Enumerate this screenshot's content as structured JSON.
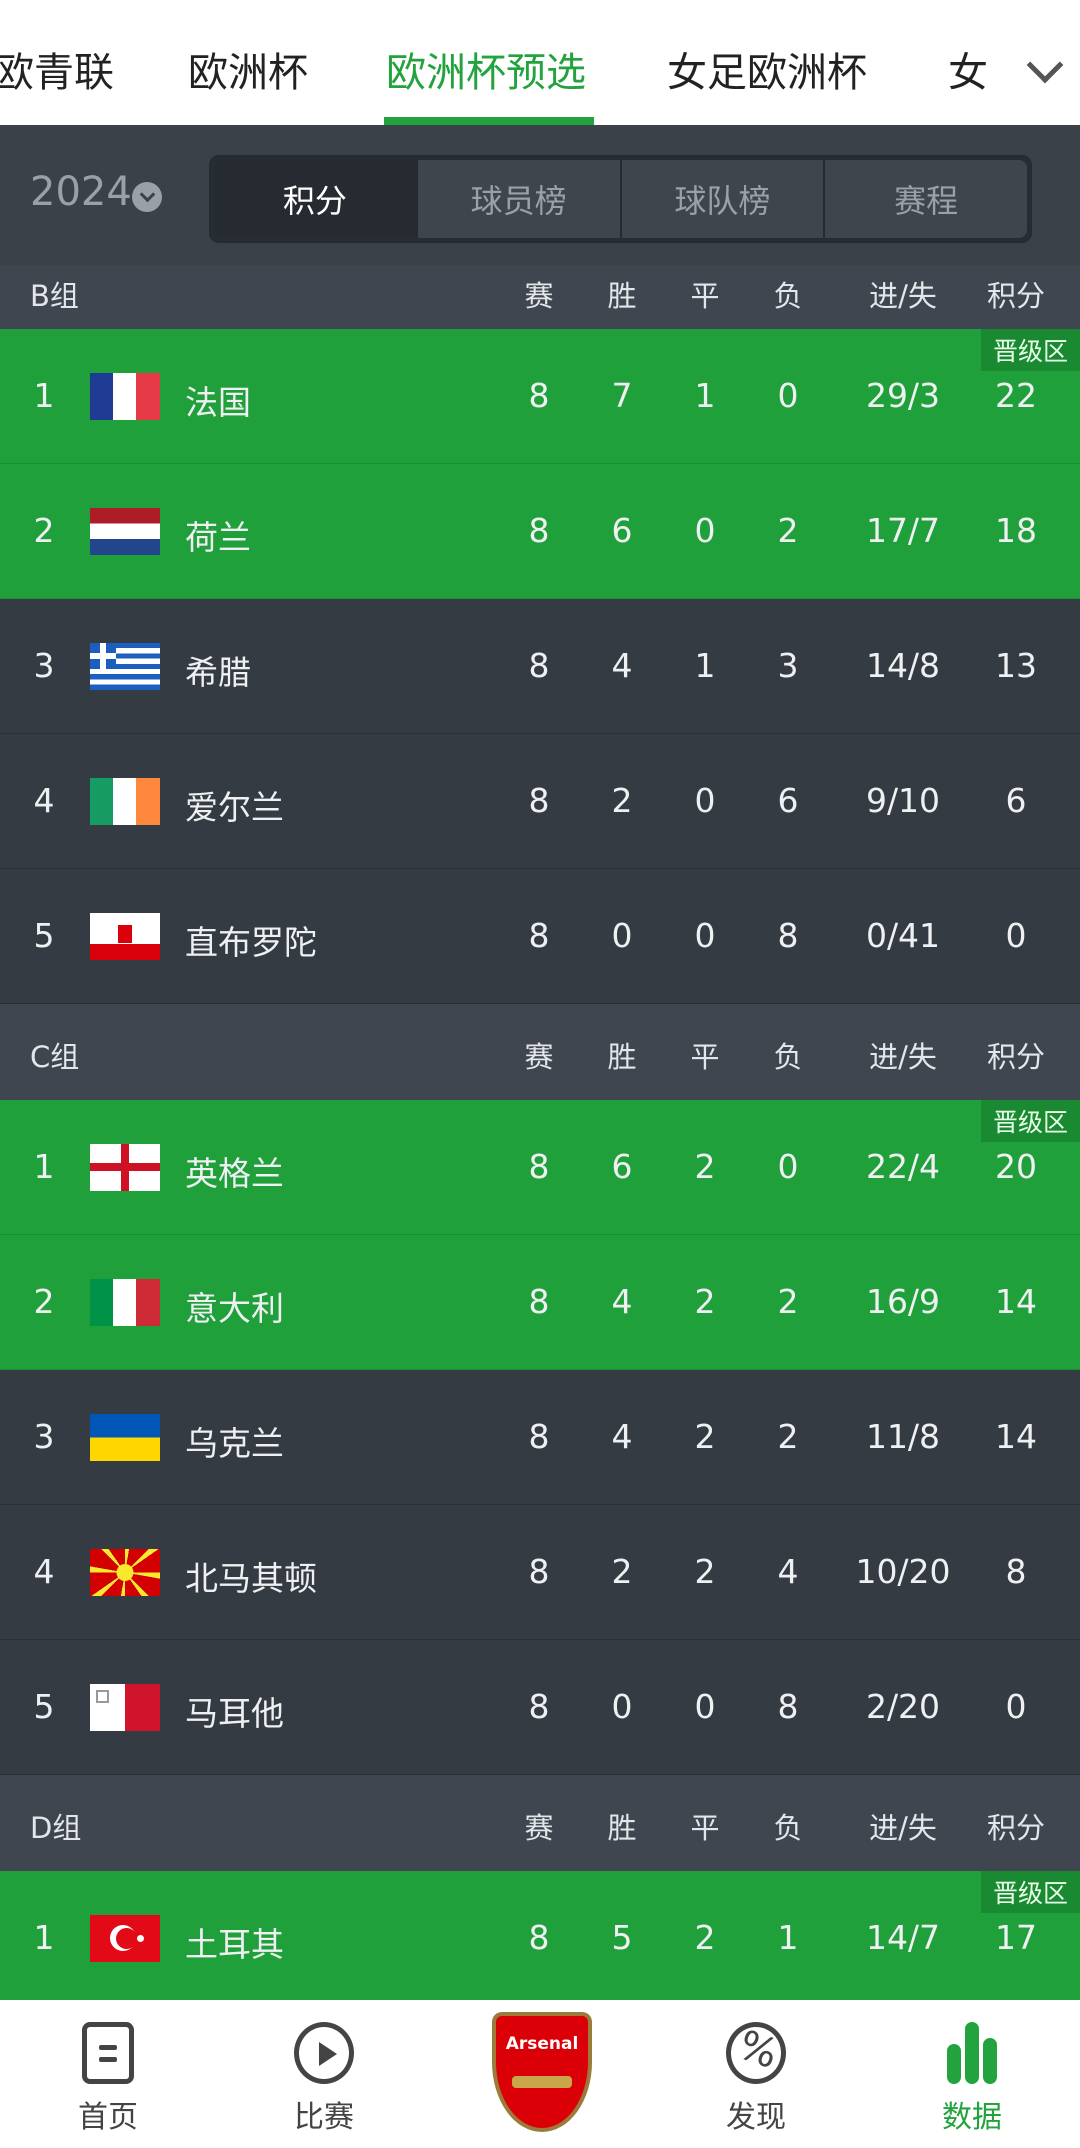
{
  "top_tabs": [
    {
      "label": "欧青联"
    },
    {
      "label": "欧洲杯"
    },
    {
      "label": "欧洲杯预选",
      "active": true
    },
    {
      "label": "女足欧洲杯"
    },
    {
      "label": "女"
    }
  ],
  "season": {
    "year": "2024"
  },
  "segments": [
    {
      "label": "积分",
      "active": true
    },
    {
      "label": "球员榜"
    },
    {
      "label": "球队榜"
    },
    {
      "label": "赛程"
    }
  ],
  "columns": [
    "赛",
    "胜",
    "平",
    "负",
    "进/失",
    "积分"
  ],
  "qualify_badge": "晋级区",
  "accent_color": "#22a33d",
  "groups": [
    {
      "name": "B组",
      "rows": [
        {
          "rank": "1",
          "team": "法国",
          "flag": "fr",
          "played": "8",
          "won": "7",
          "drawn": "1",
          "lost": "0",
          "goals": "29/3",
          "points": "22",
          "qualified": true
        },
        {
          "rank": "2",
          "team": "荷兰",
          "flag": "nl",
          "played": "8",
          "won": "6",
          "drawn": "0",
          "lost": "2",
          "goals": "17/7",
          "points": "18",
          "qualified": true
        },
        {
          "rank": "3",
          "team": "希腊",
          "flag": "gr",
          "played": "8",
          "won": "4",
          "drawn": "1",
          "lost": "3",
          "goals": "14/8",
          "points": "13"
        },
        {
          "rank": "4",
          "team": "爱尔兰",
          "flag": "ie",
          "played": "8",
          "won": "2",
          "drawn": "0",
          "lost": "6",
          "goals": "9/10",
          "points": "6"
        },
        {
          "rank": "5",
          "team": "直布罗陀",
          "flag": "gi",
          "played": "8",
          "won": "0",
          "drawn": "0",
          "lost": "8",
          "goals": "0/41",
          "points": "0"
        }
      ]
    },
    {
      "name": "C组",
      "rows": [
        {
          "rank": "1",
          "team": "英格兰",
          "flag": "en",
          "played": "8",
          "won": "6",
          "drawn": "2",
          "lost": "0",
          "goals": "22/4",
          "points": "20",
          "qualified": true
        },
        {
          "rank": "2",
          "team": "意大利",
          "flag": "it",
          "played": "8",
          "won": "4",
          "drawn": "2",
          "lost": "2",
          "goals": "16/9",
          "points": "14",
          "qualified": true
        },
        {
          "rank": "3",
          "team": "乌克兰",
          "flag": "ua",
          "played": "8",
          "won": "4",
          "drawn": "2",
          "lost": "2",
          "goals": "11/8",
          "points": "14"
        },
        {
          "rank": "4",
          "team": "北马其顿",
          "flag": "mk",
          "played": "8",
          "won": "2",
          "drawn": "2",
          "lost": "4",
          "goals": "10/20",
          "points": "8"
        },
        {
          "rank": "5",
          "team": "马耳他",
          "flag": "mt",
          "played": "8",
          "won": "0",
          "drawn": "0",
          "lost": "8",
          "goals": "2/20",
          "points": "0"
        }
      ]
    },
    {
      "name": "D组",
      "rows": [
        {
          "rank": "1",
          "team": "土耳其",
          "flag": "tr",
          "played": "8",
          "won": "5",
          "drawn": "2",
          "lost": "1",
          "goals": "14/7",
          "points": "17",
          "qualified": true
        }
      ]
    }
  ],
  "bottom_nav": [
    {
      "label": "首页",
      "icon": "home-icon"
    },
    {
      "label": "比赛",
      "icon": "play-icon"
    },
    {
      "label": "",
      "icon": "arsenal-crest",
      "logo_text": "Arsenal"
    },
    {
      "label": "发现",
      "icon": "discover-icon"
    },
    {
      "label": "数据",
      "icon": "data-bars-icon",
      "active": true
    }
  ]
}
